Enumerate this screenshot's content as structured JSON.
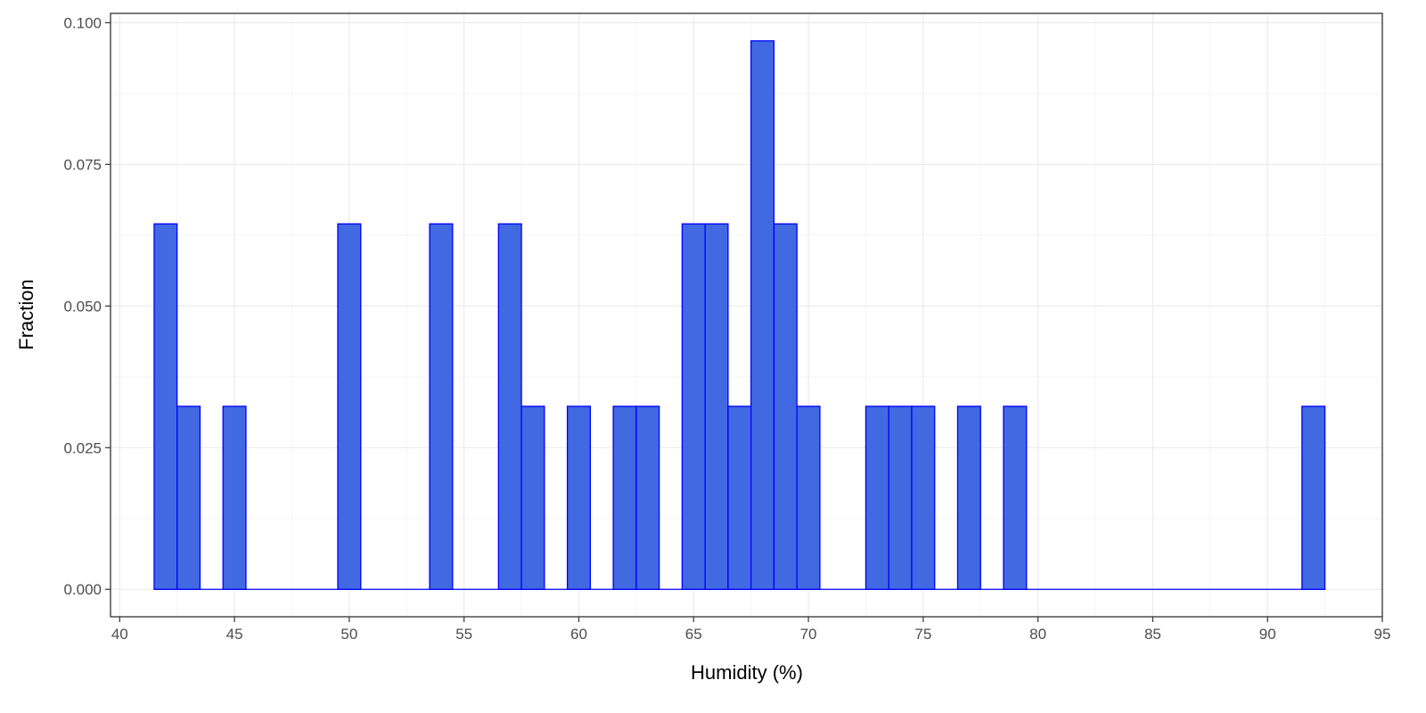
{
  "chart_data": {
    "type": "bar",
    "xlabel": "Humidity (%)",
    "ylabel": "Fraction",
    "xlim": [
      39.6,
      95.0
    ],
    "ylim": [
      -0.00484,
      0.10165
    ],
    "x_ticks": [
      40,
      45,
      50,
      55,
      60,
      65,
      70,
      75,
      80,
      85,
      90,
      95
    ],
    "x_tick_labels": [
      "40",
      "45",
      "50",
      "55",
      "60",
      "65",
      "70",
      "75",
      "80",
      "85",
      "90",
      "95"
    ],
    "y_ticks": [
      0.0,
      0.025,
      0.05,
      0.075,
      0.1
    ],
    "y_tick_labels": [
      "0.000",
      "0.025",
      "0.050",
      "0.075",
      "0.100"
    ],
    "bin_width": 1,
    "bin_range": [
      41.5,
      92.5
    ],
    "bin_centers": [
      42,
      43,
      45,
      50,
      54,
      57,
      58,
      60,
      62,
      63,
      65,
      66,
      67,
      68,
      69,
      70,
      73,
      74,
      75,
      77,
      79,
      92
    ],
    "values": [
      0.0645,
      0.0323,
      0.0323,
      0.0645,
      0.0645,
      0.0645,
      0.0323,
      0.0323,
      0.0323,
      0.0323,
      0.0645,
      0.0645,
      0.0323,
      0.0968,
      0.0645,
      0.0323,
      0.0323,
      0.0323,
      0.0323,
      0.0323,
      0.0323,
      0.0323
    ],
    "grid": true,
    "colors": {
      "fill": "#4169E1",
      "outline": "#0000FF",
      "grid_major": "#ebebeb",
      "grid_minor": "#f5f5f5",
      "panel_border": "#333333"
    }
  }
}
